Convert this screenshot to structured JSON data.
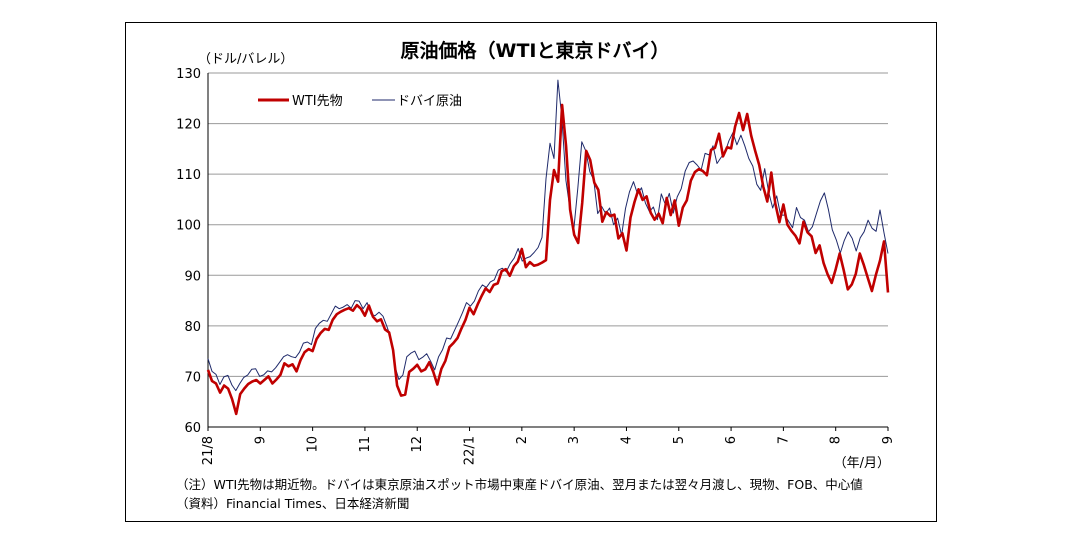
{
  "chart_data": {
    "type": "line",
    "title": "原油価格（WTIと東京ドバイ）",
    "ylabel": "（ドル/バレル）",
    "xlabel": "（年/月）",
    "ylim": [
      60,
      130
    ],
    "yticks": [
      "60",
      "70",
      "80",
      "90",
      "100",
      "110",
      "120",
      "130"
    ],
    "xticks": [
      "21/8",
      "9",
      "10",
      "11",
      "12",
      "22/1",
      "2",
      "3",
      "4",
      "5",
      "6",
      "7",
      "8",
      "9"
    ],
    "grid": true,
    "legend": "top-left",
    "series": [
      {
        "name": "WTI先物",
        "color": "#c00000",
        "values": [
          71.3,
          69.1,
          68.6,
          66.8,
          68.2,
          67.6,
          65.5,
          62.6,
          66.5,
          67.6,
          68.5,
          69.0,
          69.3,
          68.6,
          69.3,
          70.0,
          68.6,
          69.4,
          70.3,
          72.6,
          72.0,
          72.4,
          71.0,
          73.2,
          74.8,
          75.4,
          75.0,
          77.4,
          78.6,
          79.4,
          79.2,
          81.2,
          82.3,
          82.8,
          83.2,
          83.5,
          83.0,
          84.1,
          83.4,
          82.0,
          84.0,
          81.8,
          80.9,
          81.3,
          79.3,
          78.7,
          75.2,
          68.2,
          66.2,
          66.4,
          70.9,
          71.5,
          72.3,
          71.0,
          71.4,
          72.8,
          70.9,
          68.4,
          71.5,
          73.1,
          75.8,
          76.6,
          77.6,
          79.5,
          81.2,
          83.6,
          82.3,
          84.2,
          85.9,
          87.4,
          86.7,
          88.1,
          88.4,
          90.8,
          91.2,
          89.9,
          91.8,
          92.7,
          95.2,
          91.6,
          92.6,
          91.9,
          92.1,
          92.5,
          93.0,
          104.9,
          110.8,
          108.5,
          123.7,
          115.5,
          103.0,
          98.0,
          96.4,
          104.3,
          114.6,
          112.8,
          108.3,
          106.9,
          100.6,
          102.5,
          101.7,
          102.0,
          97.3,
          98.3,
          94.9,
          101.4,
          104.5,
          107.0,
          104.9,
          105.6,
          102.4,
          101.0,
          102.2,
          100.3,
          105.3,
          101.9,
          104.8,
          99.8,
          103.4,
          104.8,
          108.7,
          110.4,
          111.0,
          110.6,
          109.8,
          114.8,
          115.2,
          118.0,
          113.5,
          115.3,
          115.1,
          119.4,
          122.1,
          118.7,
          121.9,
          117.6,
          114.6,
          111.8,
          107.5,
          104.6,
          110.3,
          104.2,
          100.5,
          104.0,
          100.0,
          98.8,
          97.8,
          96.3,
          100.6,
          98.5,
          97.7,
          94.4,
          95.9,
          92.4,
          90.2,
          88.5,
          91.2,
          94.3,
          91.0,
          87.2,
          88.2,
          90.3,
          94.3,
          92.0,
          89.4,
          86.9,
          90.1,
          92.9,
          96.7,
          86.6
        ]
      },
      {
        "name": "ドバイ原油",
        "color": "#1f2a6b",
        "values": [
          73.5,
          71.0,
          70.4,
          68.4,
          69.9,
          70.2,
          68.3,
          67.2,
          68.6,
          69.8,
          70.3,
          71.4,
          71.5,
          70.0,
          70.3,
          71.1,
          70.9,
          71.7,
          72.8,
          73.9,
          74.3,
          73.9,
          73.7,
          74.8,
          76.6,
          76.8,
          76.3,
          79.5,
          80.5,
          81.1,
          80.9,
          82.4,
          83.9,
          83.4,
          83.7,
          84.2,
          83.5,
          85.0,
          84.9,
          83.4,
          84.6,
          82.3,
          82.0,
          82.7,
          81.9,
          79.9,
          77.6,
          72.0,
          69.4,
          70.3,
          73.9,
          74.6,
          75.0,
          73.3,
          73.8,
          74.5,
          73.0,
          71.3,
          73.9,
          75.3,
          77.6,
          77.4,
          79.1,
          80.8,
          82.6,
          84.6,
          83.9,
          84.9,
          86.9,
          88.1,
          87.6,
          88.7,
          89.1,
          91.0,
          91.4,
          90.7,
          92.3,
          93.4,
          95.3,
          92.8,
          93.4,
          93.7,
          94.5,
          95.5,
          97.5,
          109.1,
          116.1,
          113.1,
          128.6,
          121.1,
          108.8,
          103.2,
          99.1,
          107.2,
          116.4,
          114.6,
          110.5,
          108.9,
          102.2,
          103.6,
          102.2,
          103.3,
          100.0,
          101.3,
          97.9,
          103.2,
          106.5,
          108.5,
          106.1,
          107.3,
          104.3,
          102.6,
          103.5,
          101.0,
          106.1,
          104.0,
          106.2,
          102.3,
          105.5,
          107.1,
          110.6,
          112.3,
          112.6,
          111.8,
          110.8,
          114.1,
          113.8,
          115.6,
          112.1,
          113.3,
          114.3,
          116.6,
          118.2,
          115.8,
          117.7,
          115.6,
          113.1,
          111.6,
          108.0,
          106.8,
          111.1,
          106.4,
          103.3,
          105.7,
          101.9,
          101.9,
          100.7,
          99.4,
          103.4,
          101.4,
          100.9,
          98.6,
          99.6,
          102.2,
          104.7,
          106.3,
          103.0,
          99.0,
          97.0,
          94.4,
          96.9,
          98.6,
          97.3,
          94.8,
          97.4,
          98.6,
          100.9,
          99.3,
          98.7,
          102.9,
          98.4,
          94.3
        ]
      }
    ]
  },
  "notes": {
    "line1": "（注）WTI先物は期近物。ドバイは東京原油スポット市場中東産ドバイ原油、翌月または翌々月渡し、現物、FOB、中心値",
    "line2": "（資料）Financial Times、日本経済新聞"
  }
}
